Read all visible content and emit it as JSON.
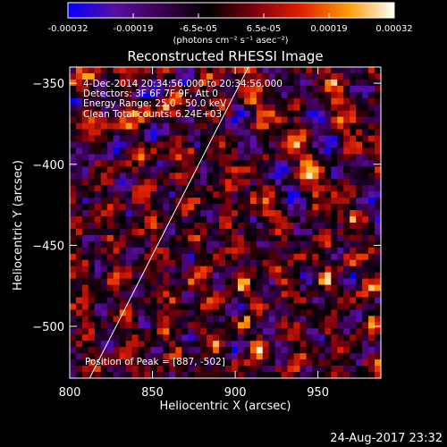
{
  "chart_data": {
    "type": "heatmap",
    "title": "Reconstructed RHESSI Image",
    "xlabel": "Heliocentric X (arcsec)",
    "ylabel": "Heliocentric Y (arcsec)",
    "xlim": [
      800,
      988
    ],
    "ylim": [
      -532,
      -340
    ],
    "xticks": [
      800,
      850,
      900,
      950
    ],
    "yticks": [
      -350,
      -400,
      -450,
      -500
    ],
    "colorbar": {
      "min": -0.00032,
      "max": 0.00032,
      "tick_labels": [
        "-0.00032",
        "-0.00019",
        "-6.5e-05",
        "6.5e-05",
        "0.00019",
        "0.00032"
      ],
      "units_label": "(photons cm⁻² s⁻¹ asec⁻²)",
      "colors": [
        "#0000ff",
        "#5a0ea0",
        "#3a0050",
        "#000000",
        "#7a0010",
        "#e02000",
        "#ff9a00",
        "#ffffff"
      ]
    },
    "annotations": {
      "time": "4-Dec-2014 20:34:56.000 to 20:34:56.000",
      "detectors": "Detectors: 3F 6F 7F 9F, Att 0",
      "energy": "Energy Range: 25.0 - 50.0 keV",
      "method": "Clean     Total counts: 6.24E+03",
      "peak": "Position of Peak = [887, -502]"
    },
    "limb_line": {
      "x": [
        812,
        908
      ],
      "y": [
        -532,
        -340
      ]
    },
    "peak": {
      "x": 887,
      "y": -502
    }
  },
  "footer": {
    "timestamp": "24-Aug-2017 23:32"
  }
}
